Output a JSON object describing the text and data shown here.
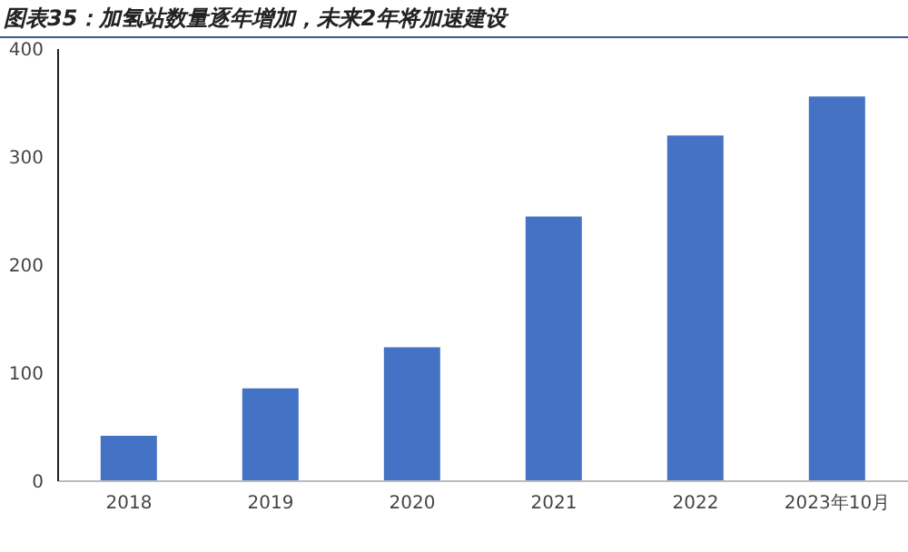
{
  "chart_data": {
    "type": "bar",
    "title": "图表35：加氢站数量逐年增加，未来2年将加速建设",
    "categories": [
      "2018",
      "2019",
      "2020",
      "2021",
      "2022",
      "2023年10月"
    ],
    "values": [
      42,
      86,
      124,
      245,
      320,
      356
    ],
    "color": "#4472c4",
    "ylim": [
      0,
      400
    ],
    "yticks": [
      0,
      100,
      200,
      300,
      400
    ],
    "grid": false
  }
}
